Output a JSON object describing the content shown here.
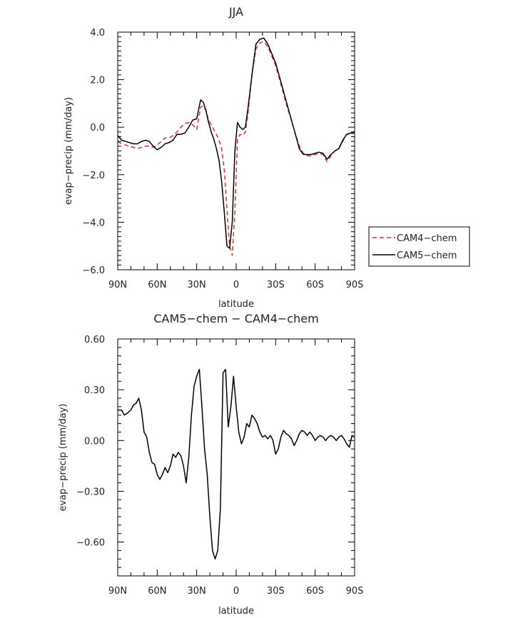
{
  "chart_data": [
    {
      "type": "line",
      "title": "JJA",
      "xlabel": "latitude",
      "ylabel": "evap−precip (mm/day)",
      "x_ticks": [
        "90N",
        "60N",
        "30N",
        "0",
        "30S",
        "60S",
        "90S"
      ],
      "y_ticks": [
        "4.0",
        "2.0",
        "0.0",
        "−2.0",
        "−4.0",
        "−6.0"
      ],
      "xlim": [
        90,
        -90
      ],
      "ylim": [
        -6,
        4
      ],
      "grid": false,
      "legend_position": "right-outside",
      "series": [
        {
          "name": "CAM4−chem",
          "color": "#e03030",
          "dash": "dashed",
          "x": [
            90,
            87,
            84,
            81,
            78,
            75,
            72,
            69,
            66,
            63,
            60,
            57,
            54,
            51,
            48,
            45,
            42,
            39,
            36,
            33,
            30,
            27,
            25,
            23,
            21,
            19,
            17,
            15,
            13,
            11,
            9,
            7,
            5,
            3,
            1,
            -1,
            -3,
            -5,
            -7,
            -9,
            -12,
            -15,
            -18,
            -21,
            -24,
            -27,
            -30,
            -33,
            -36,
            -39,
            -42,
            -45,
            -48,
            -51,
            -54,
            -57,
            -60,
            -63,
            -66,
            -69,
            -72,
            -75,
            -78,
            -81,
            -84,
            -87,
            -90
          ],
          "y": [
            -0.6,
            -0.7,
            -0.75,
            -0.8,
            -0.85,
            -0.9,
            -0.85,
            -0.8,
            -0.8,
            -0.85,
            -0.75,
            -0.6,
            -0.45,
            -0.45,
            -0.35,
            -0.2,
            0.0,
            0.15,
            0.2,
            0.1,
            -0.1,
            0.85,
            0.9,
            0.7,
            0.3,
            0.1,
            -0.1,
            -0.3,
            -0.55,
            -0.9,
            -1.8,
            -3.5,
            -5.0,
            -5.4,
            -3.5,
            -0.5,
            -0.3,
            -0.35,
            -0.2,
            0.6,
            2.2,
            3.3,
            3.55,
            3.6,
            3.4,
            3.0,
            2.6,
            2.0,
            1.4,
            0.8,
            0.3,
            -0.3,
            -0.8,
            -1.1,
            -1.2,
            -1.2,
            -1.15,
            -1.1,
            -1.15,
            -1.45,
            -1.2,
            -1.0,
            -0.9,
            -0.6,
            -0.3,
            -0.3,
            -0.25
          ]
        },
        {
          "name": "CAM5−chem",
          "color": "#000000",
          "dash": "solid",
          "x": [
            90,
            87,
            84,
            81,
            78,
            75,
            72,
            69,
            66,
            63,
            60,
            57,
            54,
            51,
            48,
            45,
            42,
            39,
            36,
            33,
            30,
            27,
            25,
            23,
            21,
            19,
            17,
            15,
            13,
            11,
            9,
            7,
            5,
            3,
            1,
            -1,
            -3,
            -5,
            -7,
            -9,
            -12,
            -15,
            -18,
            -21,
            -24,
            -27,
            -30,
            -33,
            -36,
            -39,
            -42,
            -45,
            -48,
            -51,
            -54,
            -57,
            -60,
            -63,
            -66,
            -69,
            -72,
            -75,
            -78,
            -81,
            -84,
            -87,
            -90
          ],
          "y": [
            -0.35,
            -0.55,
            -0.6,
            -0.65,
            -0.7,
            -0.7,
            -0.6,
            -0.55,
            -0.6,
            -0.8,
            -0.95,
            -0.85,
            -0.7,
            -0.65,
            -0.55,
            -0.3,
            -0.3,
            -0.25,
            0.0,
            0.3,
            0.35,
            1.15,
            1.05,
            0.7,
            0.2,
            -0.2,
            -0.5,
            -0.9,
            -1.4,
            -2.3,
            -3.6,
            -5.0,
            -5.1,
            -4.0,
            -1.0,
            0.2,
            0.0,
            -0.1,
            0.0,
            0.8,
            2.2,
            3.5,
            3.7,
            3.75,
            3.5,
            3.1,
            2.7,
            2.1,
            1.5,
            0.9,
            0.3,
            -0.3,
            -0.9,
            -1.15,
            -1.15,
            -1.15,
            -1.1,
            -1.05,
            -1.1,
            -1.35,
            -1.15,
            -1.0,
            -0.9,
            -0.55,
            -0.3,
            -0.25,
            -0.2
          ]
        }
      ]
    },
    {
      "type": "line",
      "title": "CAM5−chem  −  CAM4−chem",
      "xlabel": "latitude",
      "ylabel": "evap−precip (mm/day)",
      "x_ticks": [
        "90N",
        "60N",
        "30N",
        "0",
        "30S",
        "60S",
        "90S"
      ],
      "y_ticks": [
        "0.60",
        "0.30",
        "0.00",
        "−0.30",
        "−0.60"
      ],
      "xlim": [
        90,
        -90
      ],
      "ylim": [
        -0.8,
        0.6
      ],
      "grid": false,
      "series": [
        {
          "color": "#000000",
          "dash": "solid",
          "x": [
            90,
            87,
            85,
            83,
            80,
            78,
            76,
            74,
            72,
            70,
            68,
            66,
            64,
            62,
            60,
            58,
            56,
            54,
            52,
            50,
            48,
            46,
            44,
            42,
            40,
            38,
            36,
            34,
            32,
            30,
            28,
            26,
            24,
            22,
            20,
            18,
            16,
            14,
            12,
            10,
            8,
            6,
            4,
            2,
            0,
            -2,
            -4,
            -6,
            -8,
            -10,
            -12,
            -14,
            -16,
            -18,
            -20,
            -22,
            -24,
            -26,
            -28,
            -30,
            -32,
            -34,
            -36,
            -38,
            -40,
            -42,
            -44,
            -46,
            -48,
            -50,
            -52,
            -54,
            -56,
            -58,
            -60,
            -62,
            -64,
            -66,
            -68,
            -70,
            -72,
            -74,
            -76,
            -78,
            -80,
            -82,
            -84,
            -86,
            -88,
            -90
          ],
          "y": [
            0.18,
            0.18,
            0.15,
            0.16,
            0.18,
            0.21,
            0.22,
            0.25,
            0.18,
            0.05,
            0.02,
            -0.07,
            -0.13,
            -0.14,
            -0.2,
            -0.23,
            -0.2,
            -0.16,
            -0.19,
            -0.15,
            -0.08,
            -0.1,
            -0.07,
            -0.09,
            -0.15,
            -0.25,
            -0.1,
            0.15,
            0.32,
            0.38,
            0.42,
            0.2,
            -0.05,
            -0.2,
            -0.45,
            -0.65,
            -0.7,
            -0.65,
            -0.4,
            0.4,
            0.42,
            0.08,
            0.2,
            0.38,
            0.2,
            0.05,
            -0.02,
            0.02,
            0.1,
            0.08,
            0.15,
            0.13,
            0.1,
            0.05,
            0.02,
            0.03,
            0.01,
            0.03,
            0.0,
            -0.08,
            -0.05,
            0.02,
            0.06,
            0.04,
            0.03,
            0.01,
            -0.03,
            0.0,
            0.04,
            0.06,
            0.05,
            0.03,
            0.05,
            0.03,
            0.0,
            0.02,
            0.03,
            0.02,
            0.0,
            0.02,
            0.03,
            0.02,
            0.0,
            0.02,
            0.03,
            0.01,
            -0.02,
            -0.04,
            0.03,
            0.02
          ]
        }
      ]
    }
  ]
}
